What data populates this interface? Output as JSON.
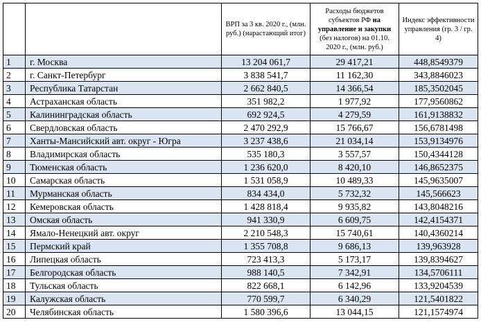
{
  "header": {
    "col1": "",
    "col2": "",
    "col3": "ВРП за 3 кв. 2020 г., (млн. руб.) (нарастающий итог)",
    "col4_pre": "Расходы бюджетов субъектов РФ ",
    "col4_bold": "на управление и закупки",
    "col4_post": " (без налогов) на 01.10. 2020 г., (млн. руб.)",
    "col5": "Индекс эффективности управления (гр. 3 / гр. 4)"
  },
  "rows": [
    {
      "n": "1",
      "region": "г. Москва",
      "grp": "13 204 061,7",
      "exp": "29 417,21",
      "idx": "448,8549379"
    },
    {
      "n": "2",
      "region": "г. Санкт-Петербург",
      "grp": "3 838 541,7",
      "exp": "11 162,30",
      "idx": "343,8846023"
    },
    {
      "n": "3",
      "region": "Республика Татарстан",
      "grp": "2 662 840,5",
      "exp": "14 366,54",
      "idx": "185,3502045"
    },
    {
      "n": "4",
      "region": "Астраханская область",
      "grp": "351 982,2",
      "exp": "1 977,92",
      "idx": "177,9560862"
    },
    {
      "n": "5",
      "region": "Калининградская область",
      "grp": "692 924,5",
      "exp": "4 279,59",
      "idx": "161,9138832"
    },
    {
      "n": "6",
      "region": "Свердловская область",
      "grp": "2 470 292,9",
      "exp": "15 766,67",
      "idx": "156,6781498"
    },
    {
      "n": "7",
      "region": "Ханты-Мансийский авт. округ - Югра",
      "grp": "3 237 438,6",
      "exp": "21 034,14",
      "idx": "153,9134976"
    },
    {
      "n": "8",
      "region": "Владимирская область",
      "grp": "535 180,3",
      "exp": "3 557,57",
      "idx": "150,4344128"
    },
    {
      "n": "9",
      "region": "Тюменская область",
      "grp": "1 236 620,0",
      "exp": "8 420,10",
      "idx": "146,8652375"
    },
    {
      "n": "10",
      "region": "Самарская область",
      "grp": "1 531 058,9",
      "exp": "10 489,33",
      "idx": "145,9635007"
    },
    {
      "n": "11",
      "region": "Мурманская область",
      "grp": "834 434,0",
      "exp": "5 732,32",
      "idx": "145,566623"
    },
    {
      "n": "12",
      "region": "Кемеровская область",
      "grp": "1 428 818,4",
      "exp": "9 935,82",
      "idx": "143,8048216"
    },
    {
      "n": "13",
      "region": "Омская область",
      "grp": "941 330,9",
      "exp": "6 609,75",
      "idx": "142,4154371"
    },
    {
      "n": "14",
      "region": "Ямало-Ненецкий авт. округ",
      "grp": "2 210 548,3",
      "exp": "15 740,61",
      "idx": "140,4360214"
    },
    {
      "n": "15",
      "region": "Пермский край",
      "grp": "1 355 708,8",
      "exp": "9 686,13",
      "idx": "139,963928"
    },
    {
      "n": "16",
      "region": "Липецкая область",
      "grp": "723 413,3",
      "exp": "5 173,17",
      "idx": "139,8394627"
    },
    {
      "n": "17",
      "region": "Белгородская область",
      "grp": "988 140,5",
      "exp": "7 342,91",
      "idx": "134,5706111"
    },
    {
      "n": "18",
      "region": "Тульская область",
      "grp": "822 668,1",
      "exp": "6 142,96",
      "idx": "133,9204539"
    },
    {
      "n": "19",
      "region": "Калужская область",
      "grp": "770 599,7",
      "exp": "6 340,29",
      "idx": "121,5401822"
    },
    {
      "n": "20",
      "region": "Челябинская область",
      "grp": "1 580 396,6",
      "exp": "13 044,15",
      "idx": "121,1574974"
    }
  ]
}
